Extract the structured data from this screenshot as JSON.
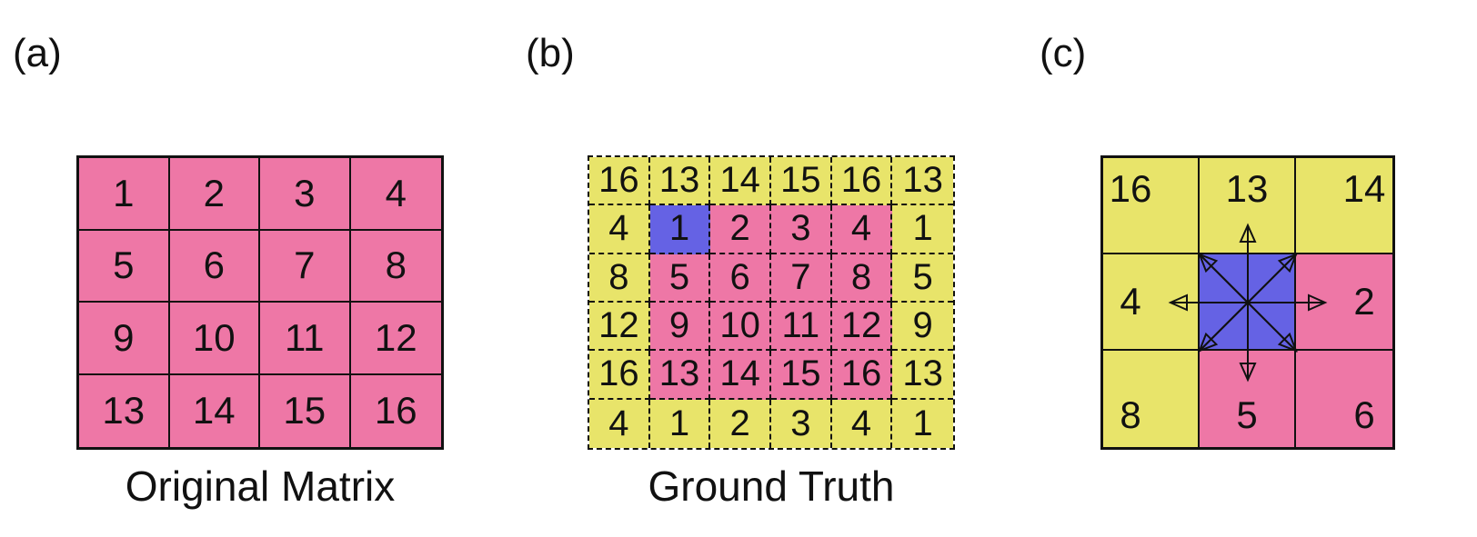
{
  "labels": {
    "a": "(a)",
    "b": "(b)",
    "c": "(c)"
  },
  "captions": {
    "a": "Original Matrix",
    "b": "Ground Truth"
  },
  "colors": {
    "pink": "#ee77a6",
    "yellow": "#e8e46a",
    "blue": "#6562e4"
  },
  "matrix_a": {
    "cells": [
      "1",
      "2",
      "3",
      "4",
      "5",
      "6",
      "7",
      "8",
      "9",
      "10",
      "11",
      "12",
      "13",
      "14",
      "15",
      "16"
    ]
  },
  "matrix_b": {
    "rows": [
      [
        "16",
        "13",
        "14",
        "15",
        "16",
        "13"
      ],
      [
        "4",
        "1",
        "2",
        "3",
        "4",
        "1"
      ],
      [
        "8",
        "5",
        "6",
        "7",
        "8",
        "5"
      ],
      [
        "12",
        "9",
        "10",
        "11",
        "12",
        "9"
      ],
      [
        "16",
        "13",
        "14",
        "15",
        "16",
        "13"
      ],
      [
        "4",
        "1",
        "2",
        "3",
        "4",
        "1"
      ]
    ],
    "fills": [
      [
        "y",
        "y",
        "y",
        "y",
        "y",
        "y"
      ],
      [
        "y",
        "b",
        "p",
        "p",
        "p",
        "y"
      ],
      [
        "y",
        "p",
        "p",
        "p",
        "p",
        "y"
      ],
      [
        "y",
        "p",
        "p",
        "p",
        "p",
        "y"
      ],
      [
        "y",
        "p",
        "p",
        "p",
        "p",
        "y"
      ],
      [
        "y",
        "y",
        "y",
        "y",
        "y",
        "y"
      ]
    ]
  },
  "matrix_c": {
    "cells": [
      "16",
      "13",
      "14",
      "4",
      "",
      "2",
      "8",
      "5",
      "6"
    ],
    "fills": [
      "y",
      "y",
      "y",
      "y",
      "b",
      "p",
      "y",
      "p",
      "p"
    ]
  }
}
